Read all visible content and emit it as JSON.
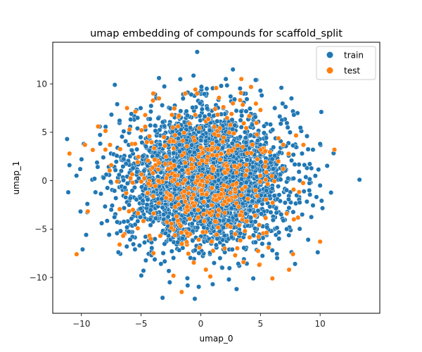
{
  "chart_data": {
    "type": "scatter",
    "title": "umap embedding of compounds for scaffold_split",
    "xlabel": "umap_0",
    "ylabel": "umap_1",
    "xlim": [
      -12.4,
      15.0
    ],
    "ylim": [
      -13.7,
      14.3
    ],
    "xticks": [
      -10,
      -5,
      0,
      5,
      10
    ],
    "yticks": [
      -10,
      -5,
      0,
      5,
      10
    ],
    "grid": false,
    "legend_position": "top-right",
    "series": [
      {
        "name": "train",
        "color": "#1f77b4",
        "distribution": {
          "n": 3200,
          "center": [
            0.5,
            0.2
          ],
          "sd": [
            3.3,
            3.4
          ]
        },
        "points": [
          [
            -0.3,
            13.3
          ],
          [
            -3.5,
            10.6
          ],
          [
            2.1,
            10.5
          ],
          [
            4.6,
            10.4
          ],
          [
            -7.2,
            9.9
          ],
          [
            -11.2,
            4.3
          ],
          [
            -11.0,
            1.6
          ],
          [
            -11.1,
            -1.2
          ],
          [
            -9.8,
            3.8
          ],
          [
            -7.0,
            7.9
          ],
          [
            -5.4,
            7.3
          ],
          [
            5.0,
            9.3
          ],
          [
            10.1,
            7.1
          ],
          [
            7.6,
            8.5
          ],
          [
            8.9,
            4.6
          ],
          [
            10.0,
            3.8
          ],
          [
            9.4,
            3.2
          ],
          [
            9.6,
            0.5
          ],
          [
            13.3,
            0.1
          ],
          [
            -10.1,
            1.2
          ],
          [
            -9.5,
            -2.4
          ],
          [
            -8.3,
            -4.4
          ],
          [
            -9.6,
            -5.6
          ],
          [
            -9.9,
            -7.1
          ],
          [
            -6.9,
            -7.4
          ],
          [
            -4.8,
            -9.3
          ],
          [
            -3.2,
            -12.1
          ],
          [
            -0.5,
            -12.2
          ],
          [
            1.0,
            -10.7
          ],
          [
            3.0,
            -11.2
          ],
          [
            4.4,
            -10.1
          ],
          [
            6.4,
            -8.0
          ],
          [
            7.9,
            -8.6
          ],
          [
            9.8,
            -7.4
          ],
          [
            10.0,
            -0.5
          ],
          [
            7.8,
            6.8
          ],
          [
            -5.3,
            5.4
          ],
          [
            4.2,
            6.9
          ],
          [
            -0.8,
            8.9
          ],
          [
            2.5,
            8.7
          ],
          [
            6.2,
            7.5
          ],
          [
            8.5,
            -3.5
          ],
          [
            9.0,
            -6.1
          ],
          [
            -6.2,
            -6.8
          ],
          [
            -2.6,
            -10.5
          ],
          [
            1.8,
            -9.0
          ],
          [
            -7.5,
            -3.0
          ],
          [
            -8.9,
            0.2
          ],
          [
            -6.8,
            6.2
          ],
          [
            6.0,
            -7.2
          ],
          [
            7.2,
            -5.0
          ],
          [
            -4.0,
            9.0
          ],
          [
            0.5,
            9.5
          ],
          [
            3.6,
            9.0
          ]
        ]
      },
      {
        "name": "test",
        "color": "#ff7f0e",
        "distribution": {
          "n": 380,
          "center": [
            0.5,
            0.2
          ],
          "sd": [
            3.4,
            3.6
          ]
        },
        "points": [
          [
            3.4,
            10.5
          ],
          [
            -8.6,
            5.6
          ],
          [
            -11.0,
            2.8
          ],
          [
            -10.4,
            -7.6
          ],
          [
            -6.5,
            -5.7
          ],
          [
            -6.8,
            -6.6
          ],
          [
            -7.5,
            1.6
          ],
          [
            -9.7,
            3.7
          ],
          [
            -1.6,
            -11.5
          ],
          [
            0.8,
            -9.9
          ],
          [
            6.0,
            -10.1
          ],
          [
            7.4,
            -9.2
          ],
          [
            10.0,
            -6.3
          ],
          [
            11.2,
            3.2
          ],
          [
            8.6,
            3.7
          ],
          [
            -0.3,
            9.0
          ],
          [
            1.9,
            7.6
          ],
          [
            7.2,
            -3.4
          ],
          [
            -3.5,
            8.5
          ],
          [
            4.9,
            -8.7
          ],
          [
            -5.5,
            3.8
          ],
          [
            6.5,
            2.0
          ],
          [
            -1.3,
            9.0
          ],
          [
            2.0,
            -7.0
          ],
          [
            -4.2,
            -6.0
          ],
          [
            5.0,
            7.3
          ],
          [
            7.8,
            -4.0
          ],
          [
            -7.6,
            3.7
          ],
          [
            1.2,
            7.4
          ],
          [
            -2.3,
            4.1
          ],
          [
            3.7,
            -5.2
          ],
          [
            -0.2,
            -3.8
          ]
        ]
      }
    ]
  }
}
